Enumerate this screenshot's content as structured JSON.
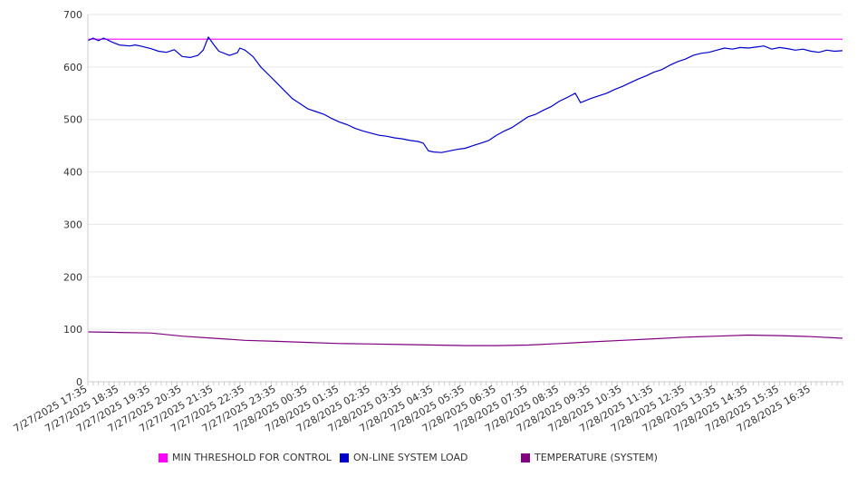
{
  "chart_data": {
    "type": "line",
    "title": "",
    "xlabel": "",
    "ylabel": "",
    "ylim": [
      0,
      700
    ],
    "yticks": [
      0,
      100,
      200,
      300,
      400,
      500,
      600,
      700
    ],
    "grid": true,
    "legend_position": "bottom",
    "x_tick_labels": [
      "7/27/2025 17:35",
      "7/27/2025 18:35",
      "7/27/2025 19:35",
      "7/27/2025 20:35",
      "7/27/2025 21:35",
      "7/27/2025 22:35",
      "7/27/2025 23:35",
      "7/28/2025 00:35",
      "7/28/2025 01:35",
      "7/28/2025 02:35",
      "7/28/2025 03:35",
      "7/28/2025 04:35",
      "7/28/2025 05:35",
      "7/28/2025 06:35",
      "7/28/2025 07:35",
      "7/28/2025 08:35",
      "7/28/2025 09:35",
      "7/28/2025 10:35",
      "7/28/2025 11:35",
      "7/28/2025 12:35",
      "7/28/2025 13:35",
      "7/28/2025 14:35",
      "7/28/2025 15:35",
      "7/28/2025 16:35"
    ],
    "x_range": [
      "7/27/2025 17:35",
      "7/28/2025 17:35"
    ],
    "series": [
      {
        "name": "MIN THRESHOLD FOR CONTROL",
        "color": "#ff00ff",
        "points": [
          [
            "7/27/2025 17:35",
            653
          ],
          [
            "7/28/2025 17:35",
            653
          ]
        ]
      },
      {
        "name": "ON-LINE SYSTEM LOAD",
        "color": "#0000cc",
        "points": [
          [
            "7/27/2025 17:35",
            650
          ],
          [
            "7/27/2025 17:45",
            655
          ],
          [
            "7/27/2025 17:55",
            650
          ],
          [
            "7/27/2025 18:05",
            655
          ],
          [
            "7/27/2025 18:20",
            648
          ],
          [
            "7/27/2025 18:35",
            642
          ],
          [
            "7/27/2025 18:55",
            640
          ],
          [
            "7/27/2025 19:05",
            642
          ],
          [
            "7/27/2025 19:15",
            640
          ],
          [
            "7/27/2025 19:35",
            635
          ],
          [
            "7/27/2025 19:50",
            630
          ],
          [
            "7/27/2025 20:05",
            628
          ],
          [
            "7/27/2025 20:20",
            633
          ],
          [
            "7/27/2025 20:35",
            620
          ],
          [
            "7/27/2025 20:50",
            618
          ],
          [
            "7/27/2025 21:05",
            622
          ],
          [
            "7/27/2025 21:15",
            632
          ],
          [
            "7/27/2025 21:25",
            657
          ],
          [
            "7/27/2025 21:35",
            643
          ],
          [
            "7/27/2025 21:45",
            630
          ],
          [
            "7/27/2025 22:05",
            622
          ],
          [
            "7/27/2025 22:20",
            627
          ],
          [
            "7/27/2025 22:25",
            636
          ],
          [
            "7/27/2025 22:35",
            632
          ],
          [
            "7/27/2025 22:50",
            620
          ],
          [
            "7/27/2025 23:05",
            600
          ],
          [
            "7/27/2025 23:20",
            585
          ],
          [
            "7/27/2025 23:35",
            570
          ],
          [
            "7/27/2025 23:50",
            555
          ],
          [
            "7/28/2025 00:05",
            540
          ],
          [
            "7/28/2025 00:20",
            530
          ],
          [
            "7/28/2025 00:35",
            520
          ],
          [
            "7/28/2025 00:50",
            515
          ],
          [
            "7/28/2025 01:05",
            510
          ],
          [
            "7/28/2025 01:20",
            502
          ],
          [
            "7/28/2025 01:35",
            495
          ],
          [
            "7/28/2025 01:50",
            490
          ],
          [
            "7/28/2025 02:05",
            483
          ],
          [
            "7/28/2025 02:20",
            478
          ],
          [
            "7/28/2025 02:35",
            474
          ],
          [
            "7/28/2025 02:50",
            470
          ],
          [
            "7/28/2025 03:05",
            468
          ],
          [
            "7/28/2025 03:20",
            465
          ],
          [
            "7/28/2025 03:35",
            463
          ],
          [
            "7/28/2025 03:50",
            460
          ],
          [
            "7/28/2025 04:05",
            458
          ],
          [
            "7/28/2025 04:15",
            455
          ],
          [
            "7/28/2025 04:25",
            440
          ],
          [
            "7/28/2025 04:35",
            438
          ],
          [
            "7/28/2025 04:50",
            437
          ],
          [
            "7/28/2025 05:05",
            440
          ],
          [
            "7/28/2025 05:20",
            443
          ],
          [
            "7/28/2025 05:35",
            445
          ],
          [
            "7/28/2025 05:50",
            450
          ],
          [
            "7/28/2025 06:05",
            455
          ],
          [
            "7/28/2025 06:20",
            460
          ],
          [
            "7/28/2025 06:35",
            470
          ],
          [
            "7/28/2025 06:50",
            478
          ],
          [
            "7/28/2025 07:05",
            485
          ],
          [
            "7/28/2025 07:20",
            495
          ],
          [
            "7/28/2025 07:35",
            505
          ],
          [
            "7/28/2025 07:50",
            510
          ],
          [
            "7/28/2025 08:05",
            518
          ],
          [
            "7/28/2025 08:20",
            525
          ],
          [
            "7/28/2025 08:35",
            535
          ],
          [
            "7/28/2025 08:50",
            542
          ],
          [
            "7/28/2025 09:05",
            550
          ],
          [
            "7/28/2025 09:15",
            532
          ],
          [
            "7/28/2025 09:35",
            540
          ],
          [
            "7/28/2025 09:50",
            545
          ],
          [
            "7/28/2025 10:05",
            550
          ],
          [
            "7/28/2025 10:20",
            557
          ],
          [
            "7/28/2025 10:35",
            563
          ],
          [
            "7/28/2025 10:50",
            570
          ],
          [
            "7/28/2025 11:05",
            577
          ],
          [
            "7/28/2025 11:20",
            583
          ],
          [
            "7/28/2025 11:35",
            590
          ],
          [
            "7/28/2025 11:50",
            595
          ],
          [
            "7/28/2025 12:05",
            603
          ],
          [
            "7/28/2025 12:20",
            610
          ],
          [
            "7/28/2025 12:35",
            615
          ],
          [
            "7/28/2025 12:50",
            622
          ],
          [
            "7/28/2025 13:05",
            626
          ],
          [
            "7/28/2025 13:20",
            628
          ],
          [
            "7/28/2025 13:35",
            632
          ],
          [
            "7/28/2025 13:50",
            636
          ],
          [
            "7/28/2025 14:05",
            634
          ],
          [
            "7/28/2025 14:20",
            637
          ],
          [
            "7/28/2025 14:35",
            636
          ],
          [
            "7/28/2025 14:50",
            638
          ],
          [
            "7/28/2025 15:05",
            640
          ],
          [
            "7/28/2025 15:20",
            634
          ],
          [
            "7/28/2025 15:35",
            637
          ],
          [
            "7/28/2025 15:50",
            635
          ],
          [
            "7/28/2025 16:05",
            632
          ],
          [
            "7/28/2025 16:20",
            634
          ],
          [
            "7/28/2025 16:35",
            630
          ],
          [
            "7/28/2025 16:50",
            628
          ],
          [
            "7/28/2025 17:05",
            632
          ],
          [
            "7/28/2025 17:20",
            630
          ],
          [
            "7/28/2025 17:35",
            631
          ]
        ]
      },
      {
        "name": "TEMPERATURE (SYSTEM)",
        "color": "#800080",
        "points": [
          [
            "7/27/2025 17:35",
            95
          ],
          [
            "7/27/2025 18:35",
            94
          ],
          [
            "7/27/2025 19:35",
            93
          ],
          [
            "7/27/2025 20:35",
            87
          ],
          [
            "7/27/2025 21:35",
            83
          ],
          [
            "7/27/2025 22:35",
            79
          ],
          [
            "7/27/2025 23:35",
            77
          ],
          [
            "7/28/2025 00:35",
            75
          ],
          [
            "7/28/2025 01:35",
            73
          ],
          [
            "7/28/2025 02:35",
            72
          ],
          [
            "7/28/2025 03:35",
            71
          ],
          [
            "7/28/2025 04:35",
            70
          ],
          [
            "7/28/2025 05:35",
            69
          ],
          [
            "7/28/2025 06:35",
            69
          ],
          [
            "7/28/2025 07:35",
            70
          ],
          [
            "7/28/2025 08:35",
            73
          ],
          [
            "7/28/2025 09:35",
            76
          ],
          [
            "7/28/2025 10:35",
            79
          ],
          [
            "7/28/2025 11:35",
            82
          ],
          [
            "7/28/2025 12:35",
            85
          ],
          [
            "7/28/2025 13:35",
            87
          ],
          [
            "7/28/2025 14:35",
            89
          ],
          [
            "7/28/2025 15:35",
            88
          ],
          [
            "7/28/2025 16:35",
            86
          ],
          [
            "7/28/2025 17:35",
            83
          ]
        ]
      }
    ]
  }
}
